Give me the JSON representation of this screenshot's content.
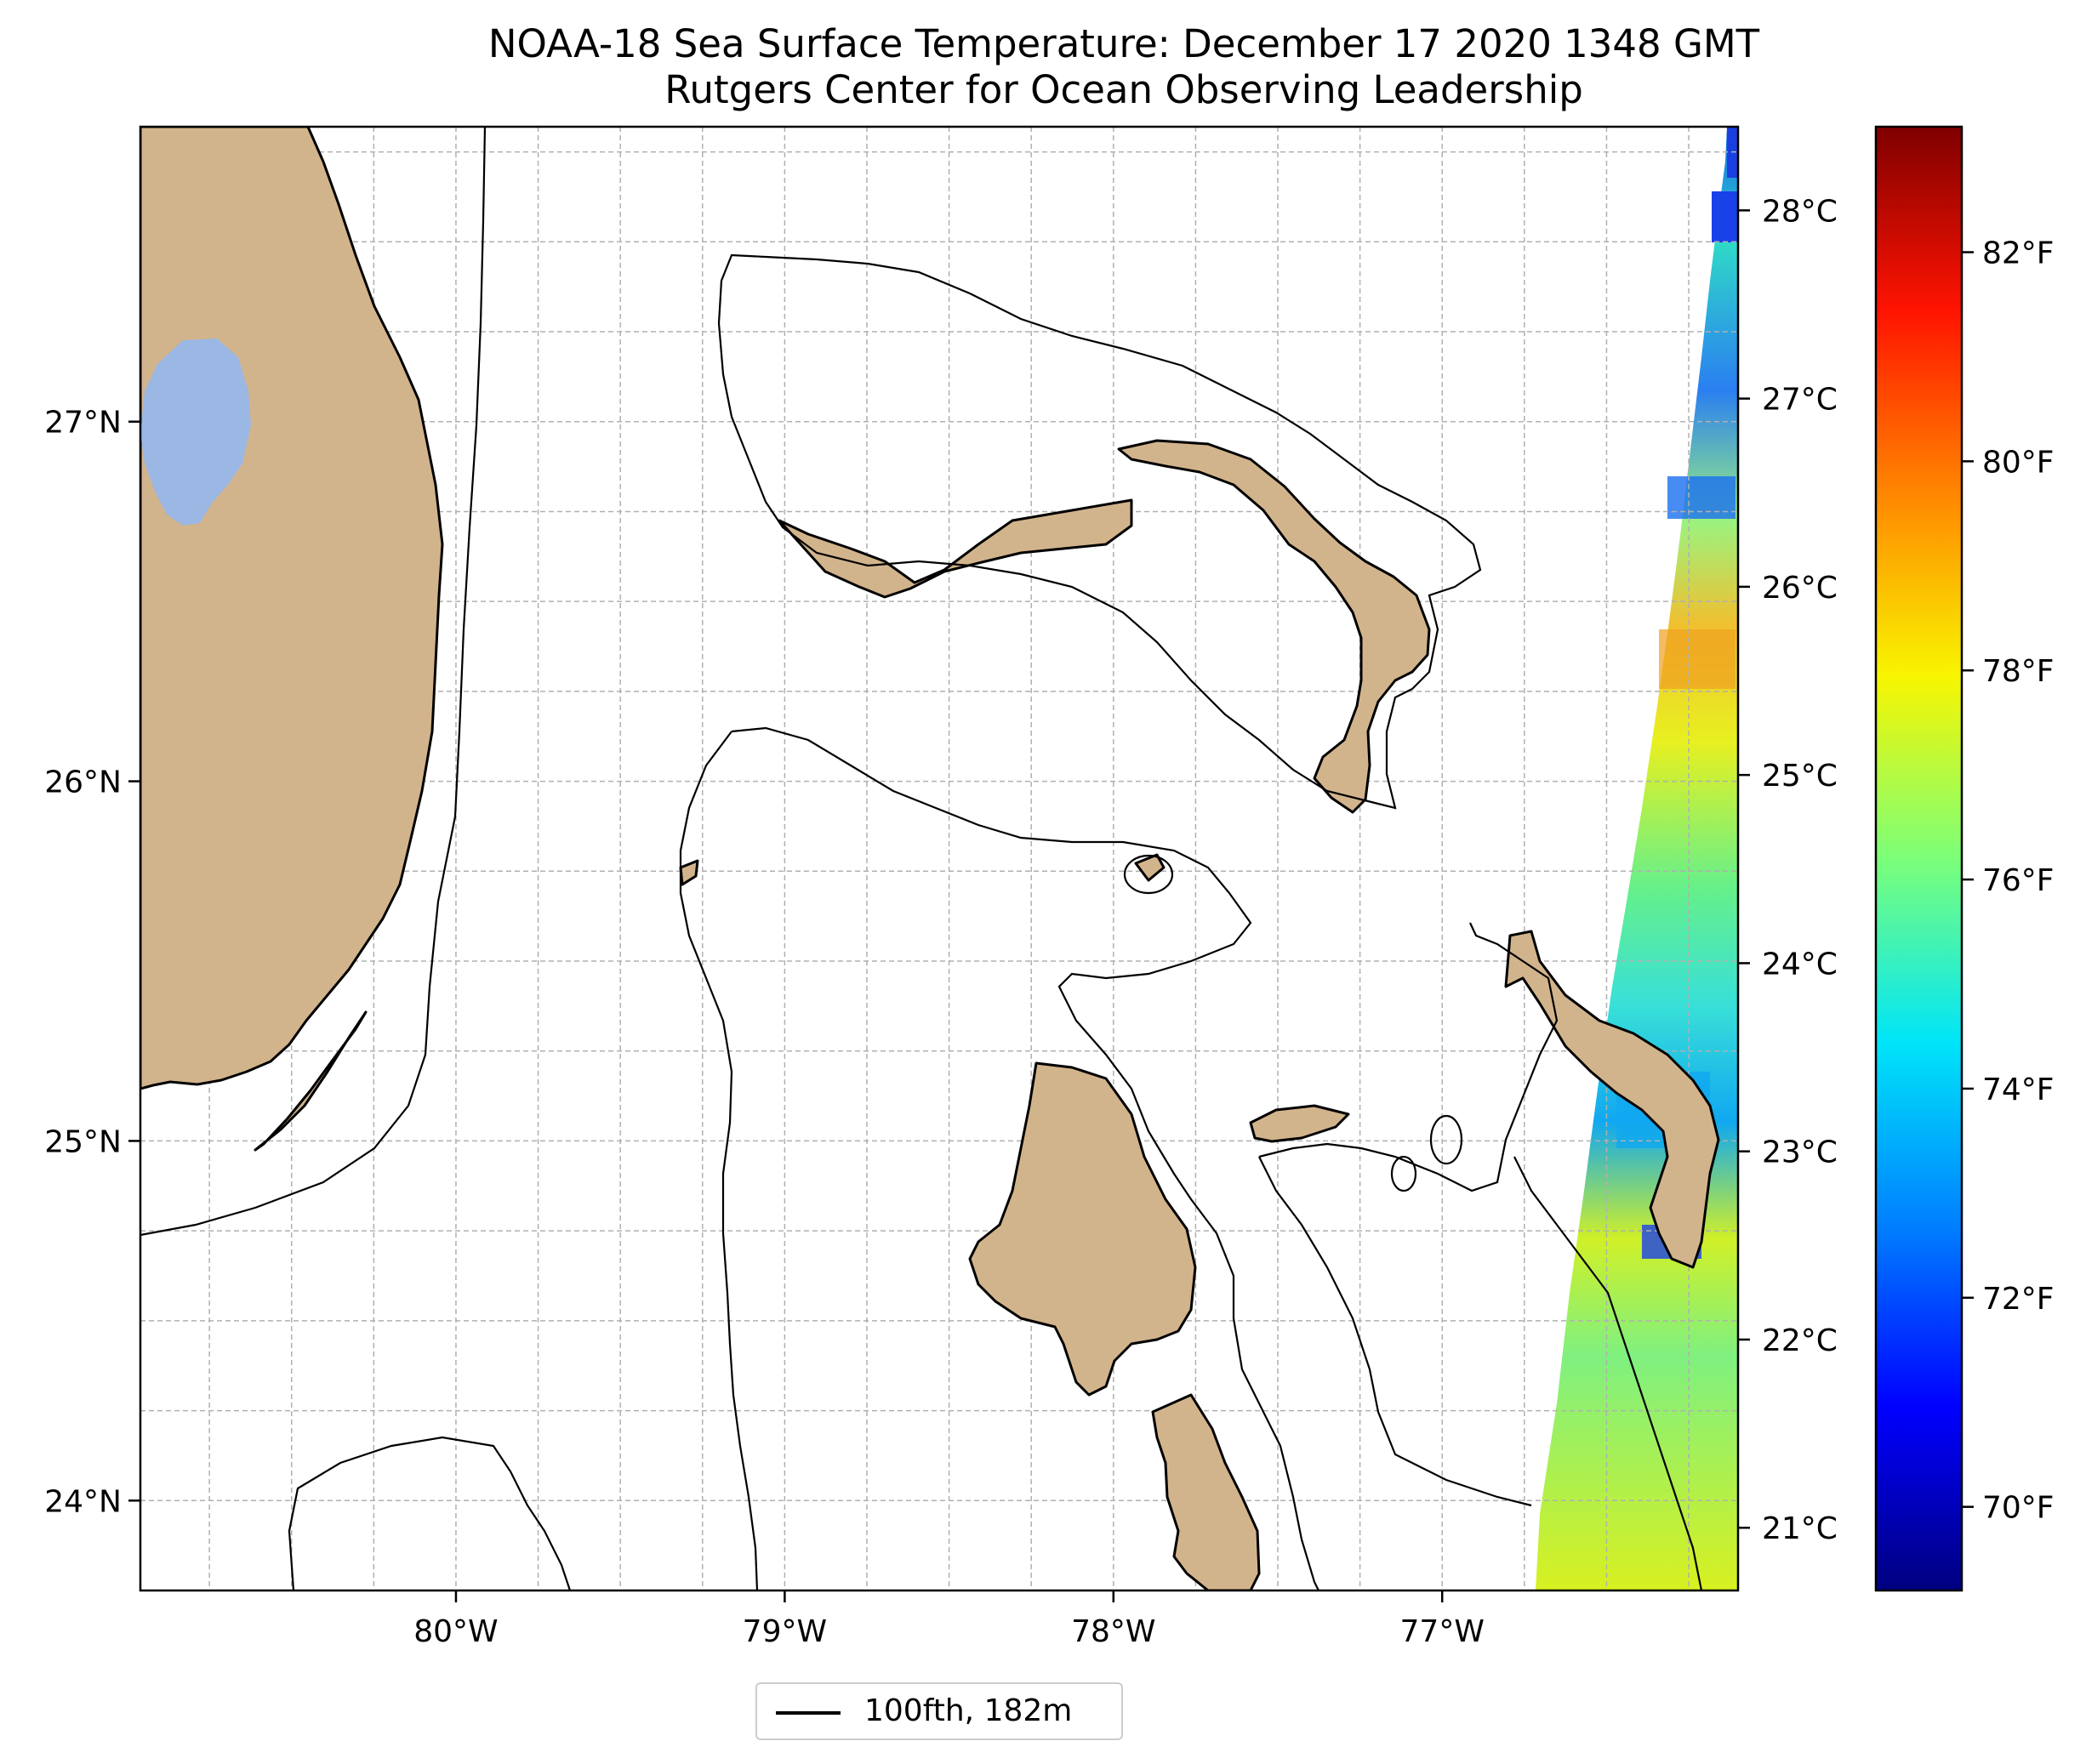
{
  "title": {
    "line1": "NOAA-18 Sea Surface Temperature: December 17 2020 1348 GMT",
    "line2": "Rutgers Center for Ocean Observing Leadership"
  },
  "map": {
    "lon_range": [
      -80.96,
      -76.1
    ],
    "lat_range": [
      23.75,
      27.82
    ],
    "lon_ticks": [
      {
        "value": -80,
        "label": "80°W"
      },
      {
        "value": -79,
        "label": "79°W"
      },
      {
        "value": -78,
        "label": "78°W"
      },
      {
        "value": -77,
        "label": "77°W"
      }
    ],
    "lat_ticks": [
      {
        "value": 24,
        "label": "24°N"
      },
      {
        "value": 25,
        "label": "25°N"
      },
      {
        "value": 26,
        "label": "26°N"
      },
      {
        "value": 27,
        "label": "27°N"
      }
    ],
    "grid": true,
    "land_color": "#d2b48c",
    "lake_color": "#9bb7e3",
    "features": [
      "Florida",
      "Lake Okeechobee",
      "Florida Keys",
      "Grand Bahama",
      "Great Abaco",
      "Andros Island",
      "Eleuthera",
      "Bimini",
      "Berry Islands",
      "New Providence",
      "Exuma Cays"
    ]
  },
  "celsius_axis": [
    {
      "value": 28,
      "label": "28°C"
    },
    {
      "value": 27,
      "label": "27°C"
    },
    {
      "value": 26,
      "label": "26°C"
    },
    {
      "value": 25,
      "label": "25°C"
    },
    {
      "value": 24,
      "label": "24°C"
    },
    {
      "value": 23,
      "label": "23°C"
    },
    {
      "value": 22,
      "label": "22°C"
    },
    {
      "value": 21,
      "label": "21°C"
    }
  ],
  "colorbar": {
    "colormap": "jet",
    "range_f": [
      69.2,
      83.2
    ],
    "ticks": [
      {
        "value": 82,
        "label": "82°F"
      },
      {
        "value": 80,
        "label": "80°F"
      },
      {
        "value": 78,
        "label": "78°F"
      },
      {
        "value": 76,
        "label": "76°F"
      },
      {
        "value": 74,
        "label": "74°F"
      },
      {
        "value": 72,
        "label": "72°F"
      },
      {
        "value": 70,
        "label": "70°F"
      }
    ]
  },
  "legend": {
    "position": "bottom-center",
    "entries": [
      {
        "label": "100fth, 182m",
        "color": "#000000"
      }
    ]
  }
}
